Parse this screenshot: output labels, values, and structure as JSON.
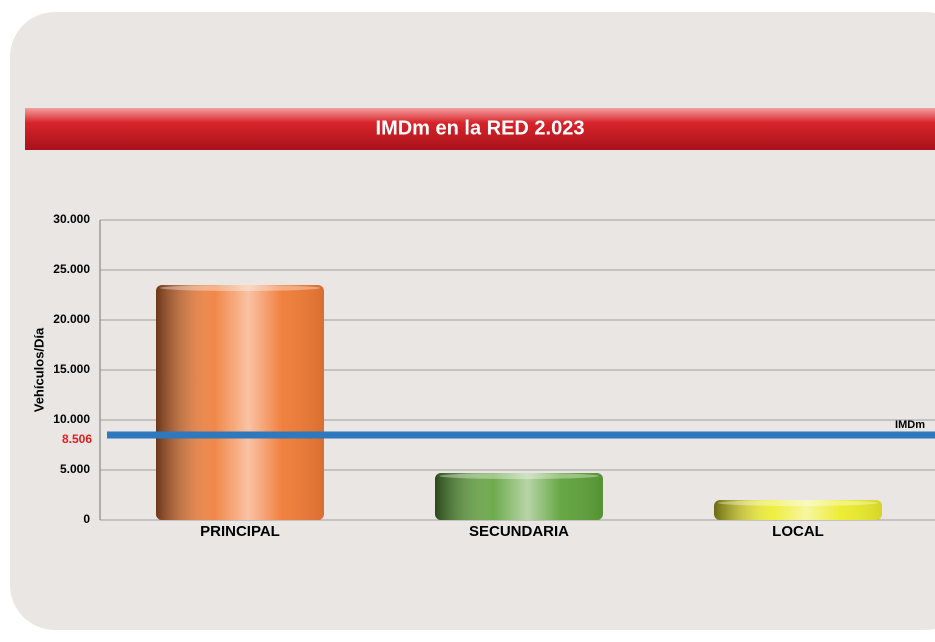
{
  "chart_data": {
    "type": "bar",
    "title": "IMDm en la RED 2.023",
    "y_label": "Vehículos/Día",
    "categories": [
      "PRINCIPAL",
      "SECUNDARIA",
      "LOCAL"
    ],
    "values": [
      23500,
      4700,
      2000
    ],
    "colors": [
      "#f07a35",
      "#5fa23a",
      "#ecec2c"
    ],
    "ylim": [
      0,
      30000
    ],
    "yticks": [
      0,
      {
        "value": 5000,
        "label": "5.000"
      },
      {
        "value": 10000,
        "label": "10.000"
      },
      {
        "value": 15000,
        "label": "15.000"
      },
      {
        "value": 20000,
        "label": "20.000"
      },
      {
        "value": 25000,
        "label": "25.000"
      },
      {
        "value": 30000,
        "label": "30.000"
      }
    ],
    "grid": true,
    "reference_line": {
      "name": "IMDm",
      "value": 8506,
      "value_label": "8.506",
      "color": "#2e78bd"
    }
  }
}
